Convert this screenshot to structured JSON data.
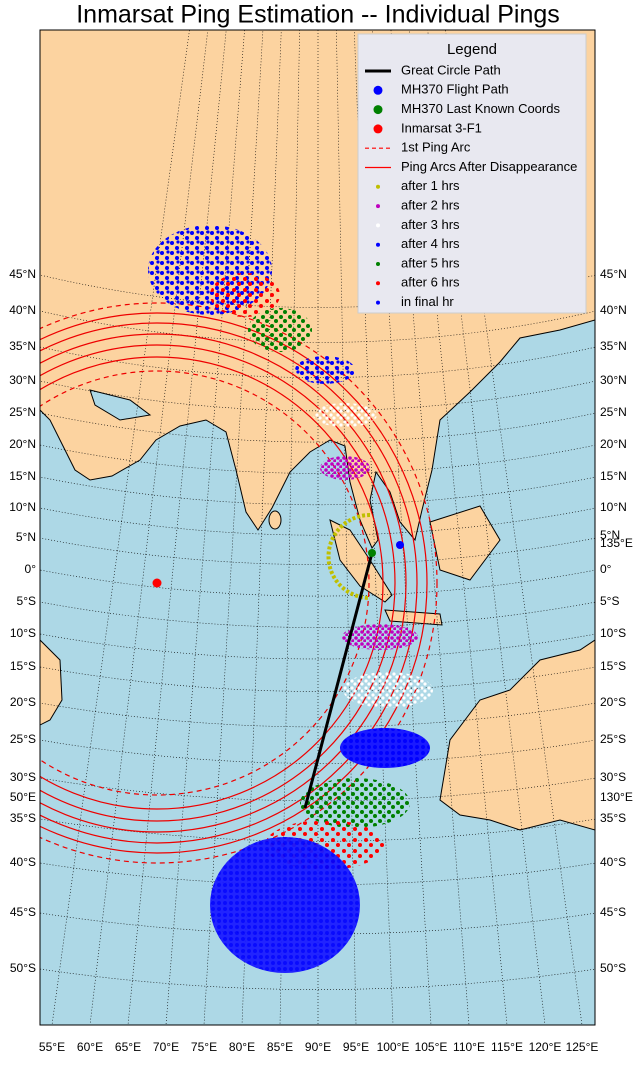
{
  "title": "Inmarsat Ping Estimation -- Individual Pings",
  "legend": {
    "title": "Legend",
    "items": [
      {
        "label": "Great Circle Path",
        "color": "#000000",
        "style": "line"
      },
      {
        "label": "MH370 Flight Path",
        "color": "#0000ff",
        "style": "dot"
      },
      {
        "label": "MH370 Last Known Coords",
        "color": "#008000",
        "style": "dot"
      },
      {
        "label": "Inmarsat 3-F1",
        "color": "#ff0000",
        "style": "dot"
      },
      {
        "label": "1st Ping Arc",
        "color": "#ff0000",
        "style": "dashed"
      },
      {
        "label": "Ping Arcs After Disappearance",
        "color": "#ff0000",
        "style": "line"
      },
      {
        "label": "after 1 hrs",
        "color": "#bfbf00",
        "style": "small-dot"
      },
      {
        "label": "after 2 hrs",
        "color": "#bf00bf",
        "style": "small-dot"
      },
      {
        "label": "after 3 hrs",
        "color": "#ffffff",
        "style": "small-dot"
      },
      {
        "label": "after 4 hrs",
        "color": "#0000ff",
        "style": "small-dot"
      },
      {
        "label": "after 5 hrs",
        "color": "#008000",
        "style": "small-dot"
      },
      {
        "label": "after 6 hrs",
        "color": "#ff0000",
        "style": "small-dot"
      },
      {
        "label": "in final hr",
        "color": "#0000ff",
        "style": "small-dot"
      }
    ]
  },
  "left_labels": [
    "45°N",
    "40°N",
    "35°N",
    "30°N",
    "25°N",
    "20°N",
    "15°N",
    "10°N",
    "5°N",
    "0°",
    "5°S",
    "10°S",
    "15°S",
    "20°S",
    "25°S",
    "30°S",
    "50°E",
    "35°S",
    "40°S",
    "45°S",
    "50°S"
  ],
  "right_labels": [
    "45°N",
    "40°N",
    "35°N",
    "30°N",
    "25°N",
    "20°N",
    "15°N",
    "10°N",
    "5°N",
    "135°E",
    "0°",
    "5°S",
    "10°S",
    "15°S",
    "20°S",
    "25°S",
    "30°S",
    "130°E",
    "35°S",
    "40°S",
    "45°S",
    "50°S"
  ],
  "bottom_labels": [
    "55°E",
    "60°E",
    "65°E",
    "70°E",
    "75°E",
    "80°E",
    "85°E",
    "90°E",
    "95°E",
    "100°E",
    "105°E",
    "110°E",
    "115°E",
    "120°E",
    "125°E"
  ]
}
